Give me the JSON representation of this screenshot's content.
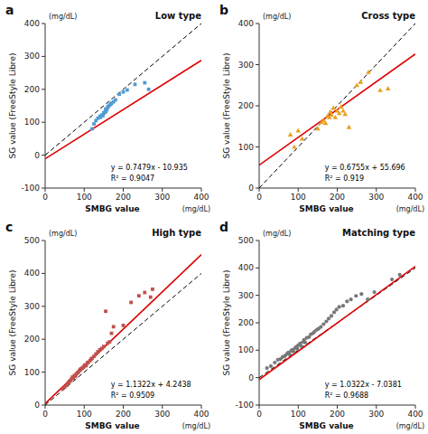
{
  "chart_data": [
    {
      "type": "scatter",
      "title": "Low type",
      "annotations": [
        "a",
        "y = 0.7479x - 10.935",
        "R² = 0.9047",
        "(mg/dL)",
        "(mg/dL)"
      ],
      "xlabel": "SMBG value",
      "ylabel": "SG value (FreeStyle Libre)",
      "xlim": [
        0,
        400
      ],
      "ylim": [
        -100,
        400
      ],
      "xticks": [
        0,
        100,
        200,
        300,
        400
      ],
      "yticks": [
        -100,
        0,
        100,
        200,
        300,
        400
      ],
      "grid": false,
      "series": [
        {
          "type": "line",
          "line_style": "dashed",
          "color": "black",
          "x": [
            0,
            400
          ],
          "values": [
            0,
            400
          ]
        },
        {
          "type": "line",
          "line_style": "solid",
          "color": "#dd0000",
          "x": [
            0,
            400
          ],
          "values": [
            -10.935,
            288.225
          ]
        },
        {
          "type": "scatter",
          "marker": "square",
          "color": "#4f9cd4",
          "x": [
            120,
            125,
            130,
            135,
            140,
            142,
            145,
            148,
            150,
            152,
            155,
            155,
            158,
            160,
            162,
            165,
            168,
            170,
            175,
            180,
            190,
            200,
            210,
            230,
            255,
            265
          ],
          "values": [
            80,
            95,
            105,
            112,
            118,
            115,
            122,
            120,
            128,
            130,
            132,
            140,
            138,
            145,
            148,
            152,
            155,
            158,
            162,
            168,
            185,
            192,
            198,
            215,
            220,
            200
          ]
        }
      ]
    },
    {
      "type": "scatter",
      "title": "Cross type",
      "annotations": [
        "b",
        "y = 0.6755x + 55.696",
        "R² = 0.919",
        "(mg/dL)",
        "(mg/dL)"
      ],
      "xlabel": "SMBG value",
      "ylabel": "SG value (FreeStyle Libre)",
      "xlim": [
        0,
        400
      ],
      "ylim": [
        0,
        400
      ],
      "xticks": [
        0,
        100,
        200,
        300,
        400
      ],
      "yticks": [
        0,
        100,
        200,
        300,
        400
      ],
      "grid": false,
      "series": [
        {
          "type": "line",
          "line_style": "dashed",
          "color": "black",
          "x": [
            0,
            400
          ],
          "values": [
            0,
            400
          ]
        },
        {
          "type": "line",
          "line_style": "solid",
          "color": "#dd0000",
          "x": [
            0,
            400
          ],
          "values": [
            55.696,
            325.896
          ]
        },
        {
          "type": "scatter",
          "marker": "triangle",
          "color": "#e8a020",
          "x": [
            80,
            90,
            100,
            110,
            150,
            160,
            165,
            170,
            175,
            180,
            182,
            185,
            190,
            195,
            200,
            205,
            210,
            215,
            220,
            230,
            250,
            260,
            280,
            310,
            330
          ],
          "values": [
            130,
            100,
            140,
            120,
            145,
            160,
            165,
            158,
            175,
            172,
            185,
            178,
            195,
            172,
            188,
            182,
            198,
            188,
            180,
            148,
            250,
            258,
            282,
            238,
            242
          ]
        }
      ]
    },
    {
      "type": "scatter",
      "title": "High type",
      "annotations": [
        "c",
        "y = 1.1322x + 4.2438",
        "R² = 0.9509",
        "(mg/dL)",
        "(mg/dL)"
      ],
      "xlabel": "SMBG value",
      "ylabel": "SG value (FreeStyle Libre)",
      "xlim": [
        0,
        400
      ],
      "ylim": [
        0,
        500
      ],
      "xticks": [
        0,
        100,
        200,
        300,
        400
      ],
      "yticks": [
        0,
        100,
        200,
        300,
        400,
        500
      ],
      "grid": false,
      "series": [
        {
          "type": "line",
          "line_style": "dashed",
          "color": "black",
          "x": [
            0,
            400
          ],
          "values": [
            0,
            400
          ]
        },
        {
          "type": "line",
          "line_style": "solid",
          "color": "#dd0000",
          "x": [
            0,
            400
          ],
          "values": [
            4.2438,
            457.1238
          ]
        },
        {
          "type": "scatter",
          "marker": "square",
          "color": "#c0504d",
          "x": [
            45,
            50,
            55,
            60,
            62,
            65,
            68,
            70,
            72,
            75,
            78,
            80,
            83,
            85,
            88,
            90,
            92,
            95,
            98,
            100,
            102,
            105,
            108,
            110,
            115,
            118,
            120,
            125,
            130,
            135,
            140,
            145,
            150,
            155,
            160,
            165,
            170,
            175,
            200,
            220,
            240,
            255,
            270,
            275
          ],
          "values": [
            50,
            55,
            60,
            68,
            72,
            75,
            80,
            85,
            82,
            90,
            88,
            95,
            98,
            100,
            105,
            108,
            110,
            112,
            115,
            118,
            122,
            120,
            128,
            130,
            135,
            140,
            142,
            148,
            155,
            162,
            168,
            172,
            178,
            285,
            188,
            192,
            218,
            238,
            242,
            312,
            332,
            342,
            328,
            352
          ]
        }
      ]
    },
    {
      "type": "scatter",
      "title": "Matching type",
      "annotations": [
        "d",
        "y = 1.0322x - 7.0381",
        "R² = 0.9688",
        "(mg/dL)",
        "(mg/dL)"
      ],
      "xlabel": "SMBG value",
      "ylabel": "SG value (FreeStyle Libre)",
      "xlim": [
        0,
        400
      ],
      "ylim": [
        -100,
        500
      ],
      "xticks": [
        0,
        100,
        200,
        300,
        400
      ],
      "yticks": [
        -100,
        0,
        100,
        200,
        300,
        400,
        500
      ],
      "grid": false,
      "series": [
        {
          "type": "line",
          "line_style": "dashed",
          "color": "black",
          "x": [
            0,
            400
          ],
          "values": [
            0,
            400
          ]
        },
        {
          "type": "line",
          "line_style": "solid",
          "color": "#dd0000",
          "x": [
            0,
            400
          ],
          "values": [
            -7.0381,
            405.8419
          ]
        },
        {
          "type": "scatter",
          "marker": "circle",
          "color": "#787878",
          "x": [
            20,
            30,
            40,
            48,
            55,
            60,
            65,
            68,
            72,
            75,
            78,
            82,
            85,
            88,
            92,
            95,
            98,
            100,
            105,
            108,
            112,
            115,
            118,
            122,
            128,
            132,
            138,
            142,
            148,
            152,
            158,
            165,
            172,
            178,
            185,
            192,
            198,
            205,
            215,
            225,
            235,
            248,
            262,
            278,
            295,
            340,
            360
          ],
          "values": [
            35,
            42,
            55,
            65,
            68,
            75,
            78,
            82,
            88,
            92,
            85,
            98,
            102,
            95,
            108,
            112,
            105,
            118,
            125,
            115,
            130,
            138,
            128,
            145,
            148,
            158,
            162,
            168,
            175,
            178,
            185,
            195,
            205,
            215,
            225,
            238,
            248,
            258,
            262,
            278,
            285,
            298,
            305,
            285,
            312,
            358,
            375
          ]
        }
      ]
    }
  ]
}
